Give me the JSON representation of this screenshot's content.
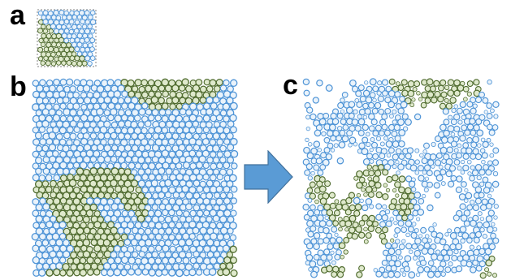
{
  "labels": {
    "a": "a",
    "b": "b",
    "c": "c"
  },
  "colors": {
    "green_fill": "#dfe9cc",
    "green_edge": "#4f6b2e",
    "blue_fill": "#eaf3fb",
    "blue_edge": "#4d93d6",
    "arrow": "#5a9bd5",
    "arrow_edge": "#41719c",
    "border_grey": "#9a9a9a"
  },
  "icons": {
    "arrow": "right-arrow-icon"
  }
}
